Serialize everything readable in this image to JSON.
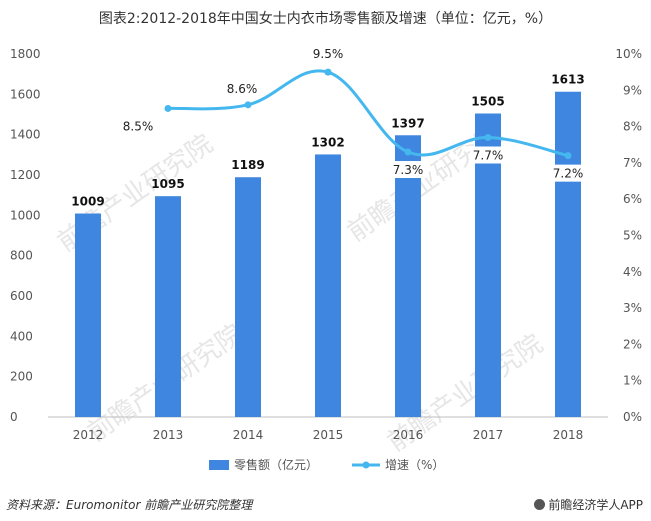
{
  "title": "图表2:2012-2018年中国女士内衣市场零售额及增速（单位：亿元，%）",
  "footer": {
    "source": "资料来源：Euromonitor  前瞻产业研究院整理",
    "brand": "前瞻经济学人APP"
  },
  "watermark": "前瞻产业研究院",
  "colors": {
    "bar": "#3f86e0",
    "line": "#45b7ef",
    "axis": "#555555"
  },
  "chart_data": {
    "type": "bar",
    "title": "图表2:2012-2018年中国女士内衣市场零售额及增速（单位：亿元，%）",
    "categories": [
      "2012",
      "2013",
      "2014",
      "2015",
      "2016",
      "2017",
      "2018"
    ],
    "series": [
      {
        "name": "零售额（亿元）",
        "type": "bar",
        "axis": "left",
        "values": [
          1009,
          1095,
          1189,
          1302,
          1397,
          1505,
          1613
        ],
        "labels": [
          "1009",
          "1095",
          "1189",
          "1302",
          "1397",
          "1505",
          "1613"
        ]
      },
      {
        "name": "增速（%）",
        "type": "line",
        "axis": "right",
        "values": [
          null,
          8.5,
          8.6,
          9.5,
          7.3,
          7.7,
          7.2
        ],
        "labels": [
          "",
          "8.5%",
          "8.6%",
          "9.5%",
          "7.3%",
          "7.7%",
          "7.2%"
        ]
      }
    ],
    "yleft": {
      "min": 0,
      "max": 1800,
      "ticks": [
        "0",
        "200",
        "400",
        "600",
        "800",
        "1000",
        "1200",
        "1400",
        "1600",
        "1800"
      ]
    },
    "yright": {
      "min": 0,
      "max": 10,
      "ticks": [
        "0%",
        "1%",
        "2%",
        "3%",
        "4%",
        "5%",
        "6%",
        "7%",
        "8%",
        "9%",
        "10%"
      ]
    },
    "legend": [
      "零售额（亿元）",
      "增速（%）"
    ],
    "legend_position": "bottom",
    "grid": false
  }
}
